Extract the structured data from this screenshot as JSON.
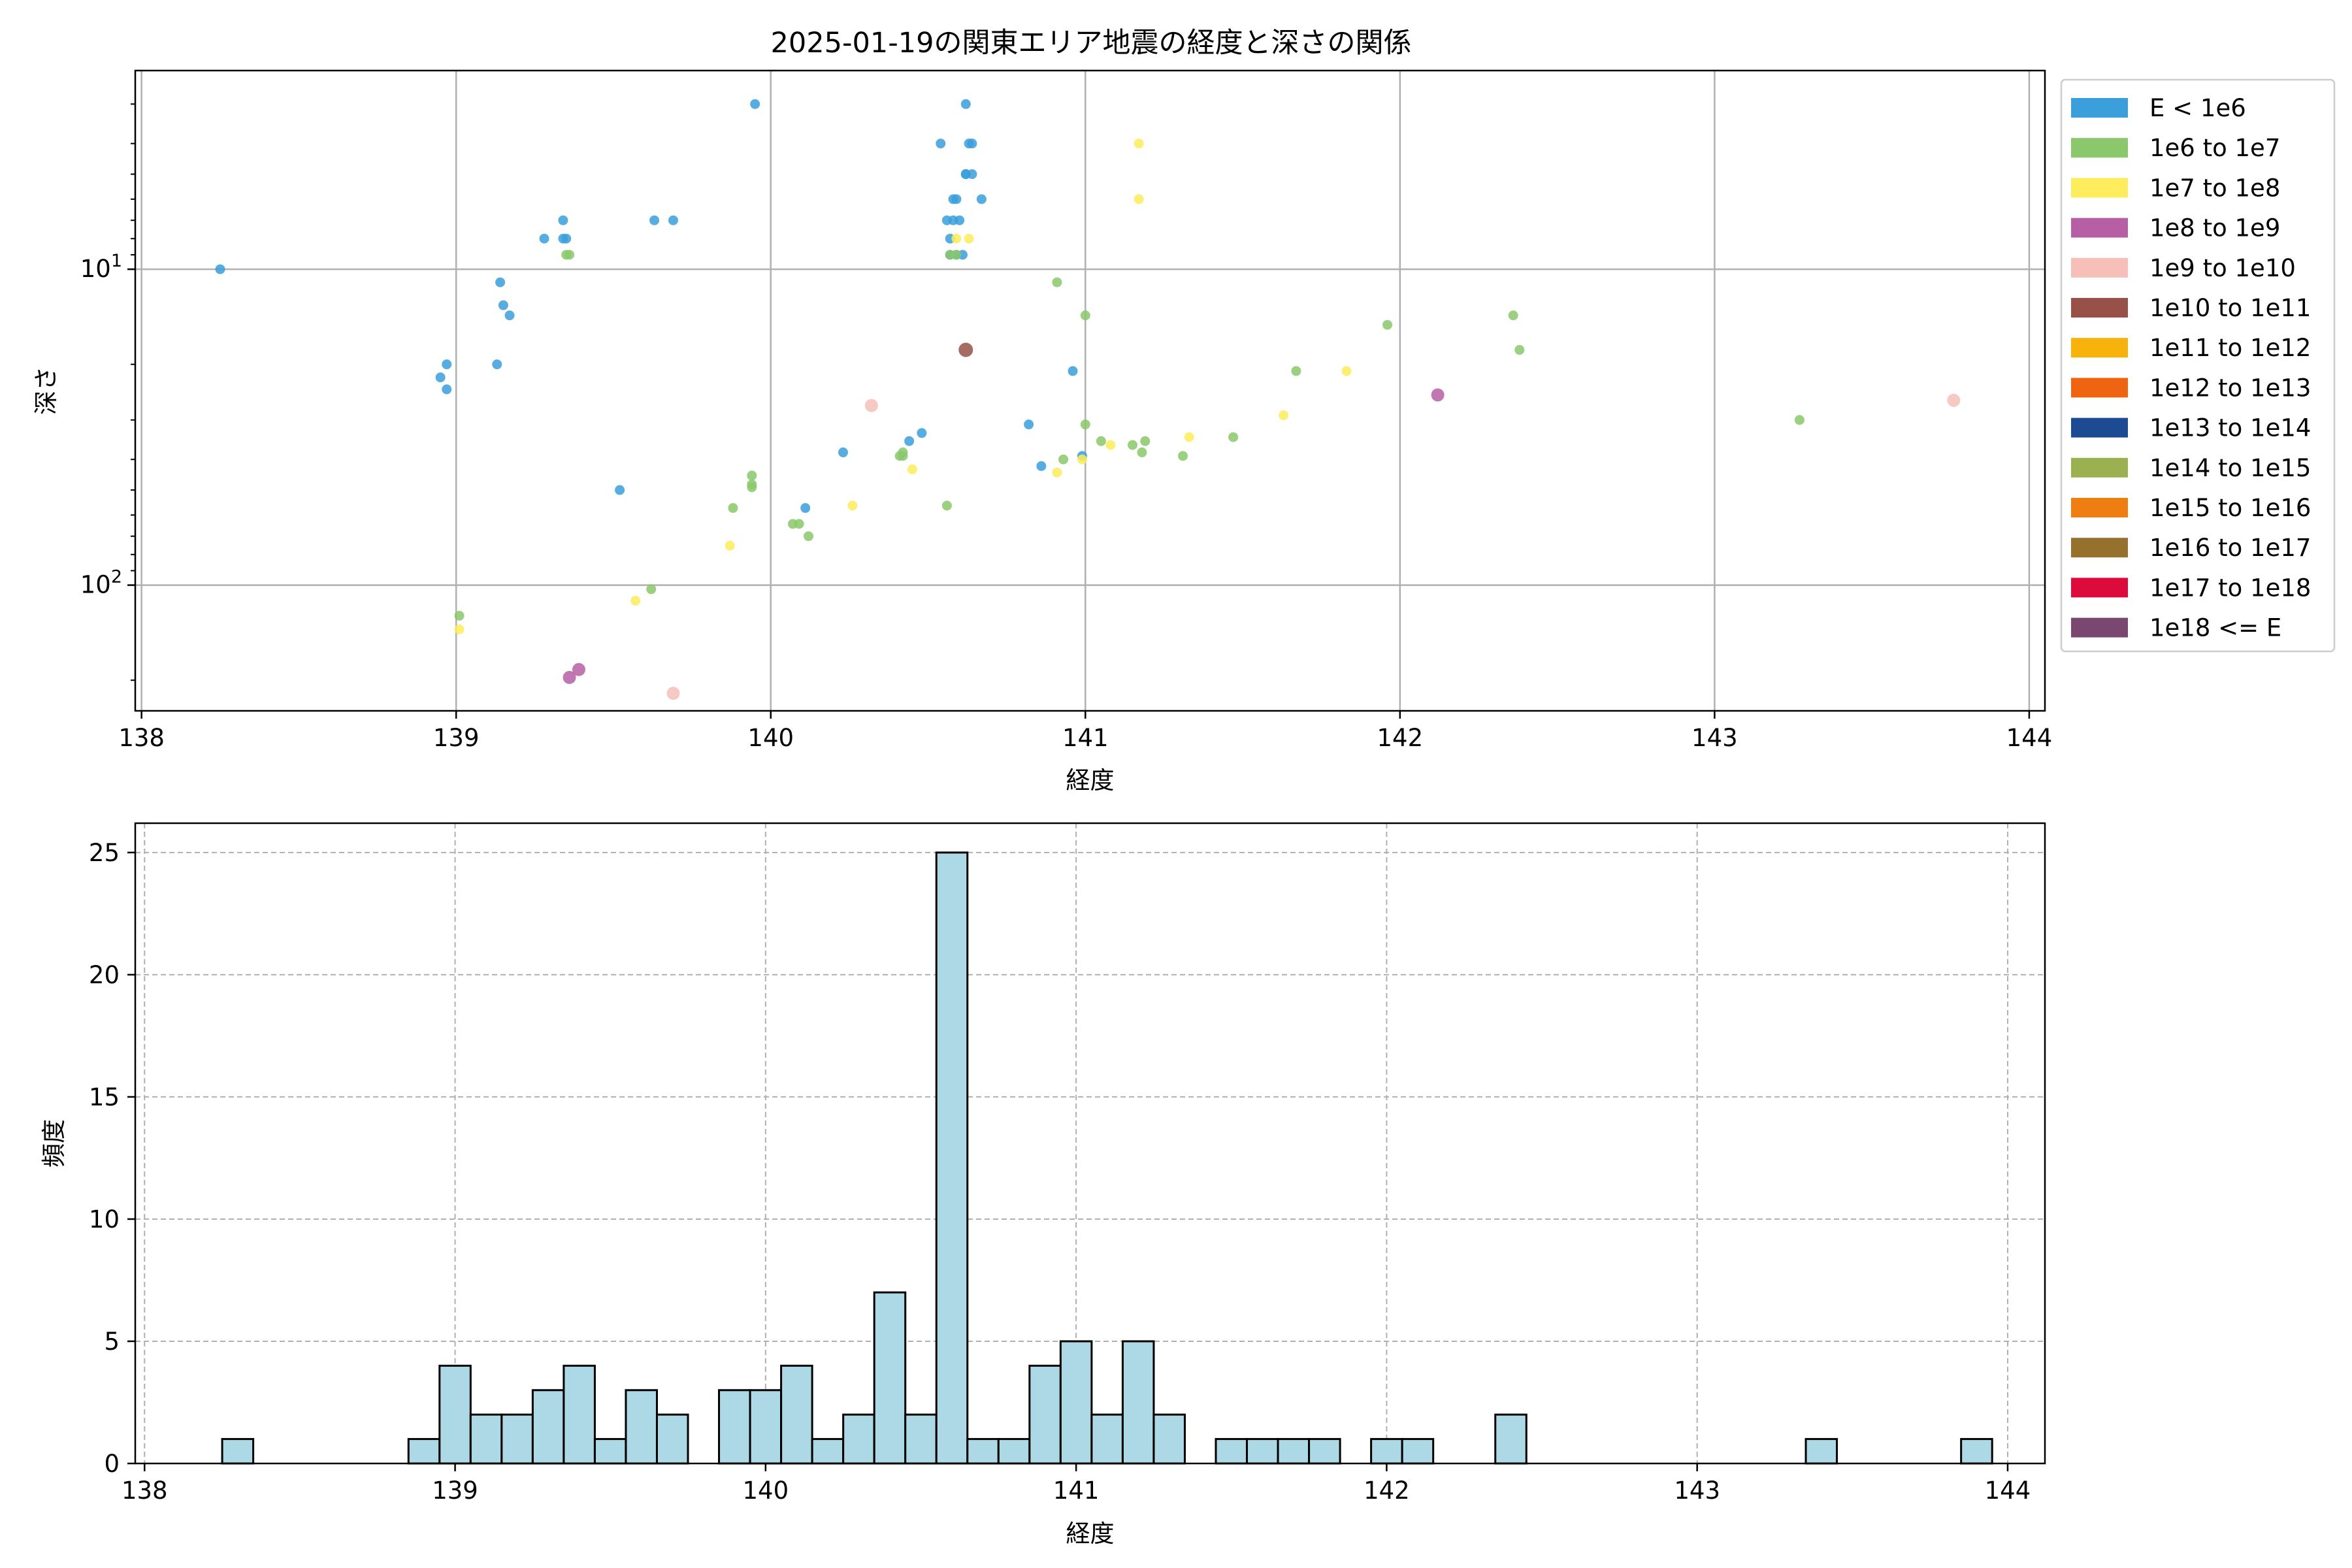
{
  "figure": {
    "title": "2025-01-19の関東エリア地震の経度と深さの関係"
  },
  "colors": {
    "grid": "#b0b0b0",
    "axis": "#000000",
    "hist_fill": "#add8e6",
    "hist_edge": "#000000"
  },
  "chart_data": [
    {
      "type": "scatter",
      "title": "2025-01-19の関東エリア地震の経度と深さの関係",
      "xlabel": "経度",
      "ylabel": "深さ",
      "xlim": [
        137.98,
        144.05
      ],
      "ylim": [
        250,
        2.35
      ],
      "y_scale": "log",
      "y_inverted": true,
      "grid": true,
      "legend_position": "outside-right",
      "x_ticks": [
        {
          "value": 138,
          "label": "138"
        },
        {
          "value": 139,
          "label": "139"
        },
        {
          "value": 140,
          "label": "140"
        },
        {
          "value": 141,
          "label": "141"
        },
        {
          "value": 142,
          "label": "142"
        },
        {
          "value": 143,
          "label": "143"
        },
        {
          "value": 144,
          "label": "144"
        }
      ],
      "y_ticks": [
        {
          "value": 10,
          "base": "10",
          "exp": "1"
        },
        {
          "value": 100,
          "base": "10",
          "exp": "2"
        }
      ],
      "legend": [
        {
          "label": "E < 1e6",
          "color": "#3b9fdb"
        },
        {
          "label": "1e6 to 1e7",
          "color": "#8bc86b"
        },
        {
          "label": "1e7 to 1e8",
          "color": "#fdec5c"
        },
        {
          "label": "1e8 to 1e9",
          "color": "#b65fa5"
        },
        {
          "label": "1e9 to 1e10",
          "color": "#f6bfb8"
        },
        {
          "label": "1e10 to 1e11",
          "color": "#985149"
        },
        {
          "label": "1e11 to 1e12",
          "color": "#f7b20b"
        },
        {
          "label": "1e12 to 1e13",
          "color": "#ee6410"
        },
        {
          "label": "1e13 to 1e14",
          "color": "#1d4b93"
        },
        {
          "label": "1e14 to 1e15",
          "color": "#9bb050"
        },
        {
          "label": "1e15 to 1e16",
          "color": "#ef7e12"
        },
        {
          "label": "1e16 to 1e17",
          "color": "#95712d"
        },
        {
          "label": "1e17 to 1e18",
          "color": "#dd0a3c"
        },
        {
          "label": "1e18 <= E",
          "color": "#7a4770"
        }
      ],
      "series": [
        {
          "name": "E < 1e6",
          "color": "#3b9fdb",
          "x": [
            138.25,
            138.95,
            138.97,
            138.97,
            139.13,
            139.14,
            139.15,
            139.17,
            139.28,
            139.34,
            139.35,
            139.34,
            139.52,
            139.63,
            139.69,
            139.95,
            140.11,
            140.23,
            140.44,
            140.48,
            140.54,
            140.56,
            140.57,
            140.57,
            140.58,
            140.58,
            140.59,
            140.59,
            140.6,
            140.61,
            140.62,
            140.62,
            140.62,
            140.63,
            140.64,
            140.64,
            140.67,
            140.82,
            140.86,
            140.96,
            140.99
          ],
          "y": [
            10,
            22,
            20,
            24,
            20,
            11,
            13,
            14,
            8,
            7,
            8,
            8,
            50,
            7,
            7,
            3,
            57,
            38,
            35,
            33,
            4,
            7,
            8,
            9,
            7,
            6,
            6,
            9,
            7,
            9,
            5,
            5,
            3,
            4,
            4,
            5,
            6,
            31,
            42,
            21,
            39
          ]
        },
        {
          "name": "1e6 to 1e7",
          "color": "#8bc86b",
          "x": [
            139.01,
            139.35,
            139.36,
            139.62,
            139.88,
            139.94,
            139.94,
            139.94,
            140.07,
            140.09,
            140.12,
            140.41,
            140.42,
            140.42,
            140.56,
            140.57,
            140.59,
            140.91,
            140.93,
            141.0,
            141.0,
            141.05,
            141.15,
            141.18,
            141.19,
            141.31,
            141.47,
            141.67,
            141.96,
            142.36,
            142.38,
            143.27
          ],
          "y": [
            125,
            9,
            9,
            103,
            57,
            45,
            49,
            48,
            64,
            64,
            70,
            39,
            38,
            39,
            56,
            9,
            9,
            11,
            40,
            14,
            31,
            35,
            36,
            38,
            35,
            39,
            34,
            21,
            15,
            14,
            18,
            30
          ]
        },
        {
          "name": "1e7 to 1e8",
          "color": "#fdec5c",
          "x": [
            139.01,
            139.57,
            139.87,
            140.26,
            140.45,
            140.59,
            140.63,
            140.91,
            140.99,
            141.08,
            141.17,
            141.17,
            141.33,
            141.63,
            141.83
          ],
          "y": [
            138,
            112,
            75,
            56,
            43,
            8,
            8,
            44,
            40,
            36,
            4,
            6,
            34,
            29,
            21
          ]
        },
        {
          "name": "1e8 to 1e9",
          "color": "#b65fa5",
          "x": [
            139.36,
            139.39,
            142.12
          ],
          "y": [
            196,
            185,
            25
          ]
        },
        {
          "name": "1e9 to 1e10",
          "color": "#f6bfb8",
          "x": [
            139.69,
            140.32,
            143.76
          ],
          "y": [
            220,
            27,
            26
          ]
        },
        {
          "name": "1e10 to 1e11",
          "color": "#985149",
          "x": [
            140.62
          ],
          "y": [
            18
          ]
        }
      ]
    },
    {
      "type": "bar",
      "title": "",
      "xlabel": "経度",
      "ylabel": "頻度",
      "xlim": [
        137.97,
        144.12
      ],
      "ylim": [
        0,
        26.2
      ],
      "grid": true,
      "bin_start": 138.25,
      "bin_width": 0.1,
      "x_ticks": [
        {
          "value": 138,
          "label": "138"
        },
        {
          "value": 139,
          "label": "139"
        },
        {
          "value": 140,
          "label": "140"
        },
        {
          "value": 141,
          "label": "141"
        },
        {
          "value": 142,
          "label": "142"
        },
        {
          "value": 143,
          "label": "143"
        },
        {
          "value": 144,
          "label": "144"
        }
      ],
      "y_ticks": [
        {
          "value": 0,
          "label": "0"
        },
        {
          "value": 5,
          "label": "5"
        },
        {
          "value": 10,
          "label": "10"
        },
        {
          "value": 15,
          "label": "15"
        },
        {
          "value": 20,
          "label": "20"
        },
        {
          "value": 25,
          "label": "25"
        }
      ],
      "values": [
        1,
        0,
        0,
        0,
        0,
        0,
        1,
        4,
        2,
        2,
        3,
        4,
        1,
        3,
        2,
        0,
        3,
        3,
        4,
        1,
        2,
        7,
        2,
        25,
        1,
        1,
        4,
        5,
        2,
        5,
        2,
        0,
        1,
        1,
        1,
        1,
        0,
        1,
        1,
        0,
        0,
        2,
        0,
        0,
        0,
        0,
        0,
        0,
        0,
        0,
        0,
        1,
        0,
        0,
        0,
        0,
        1
      ]
    }
  ]
}
